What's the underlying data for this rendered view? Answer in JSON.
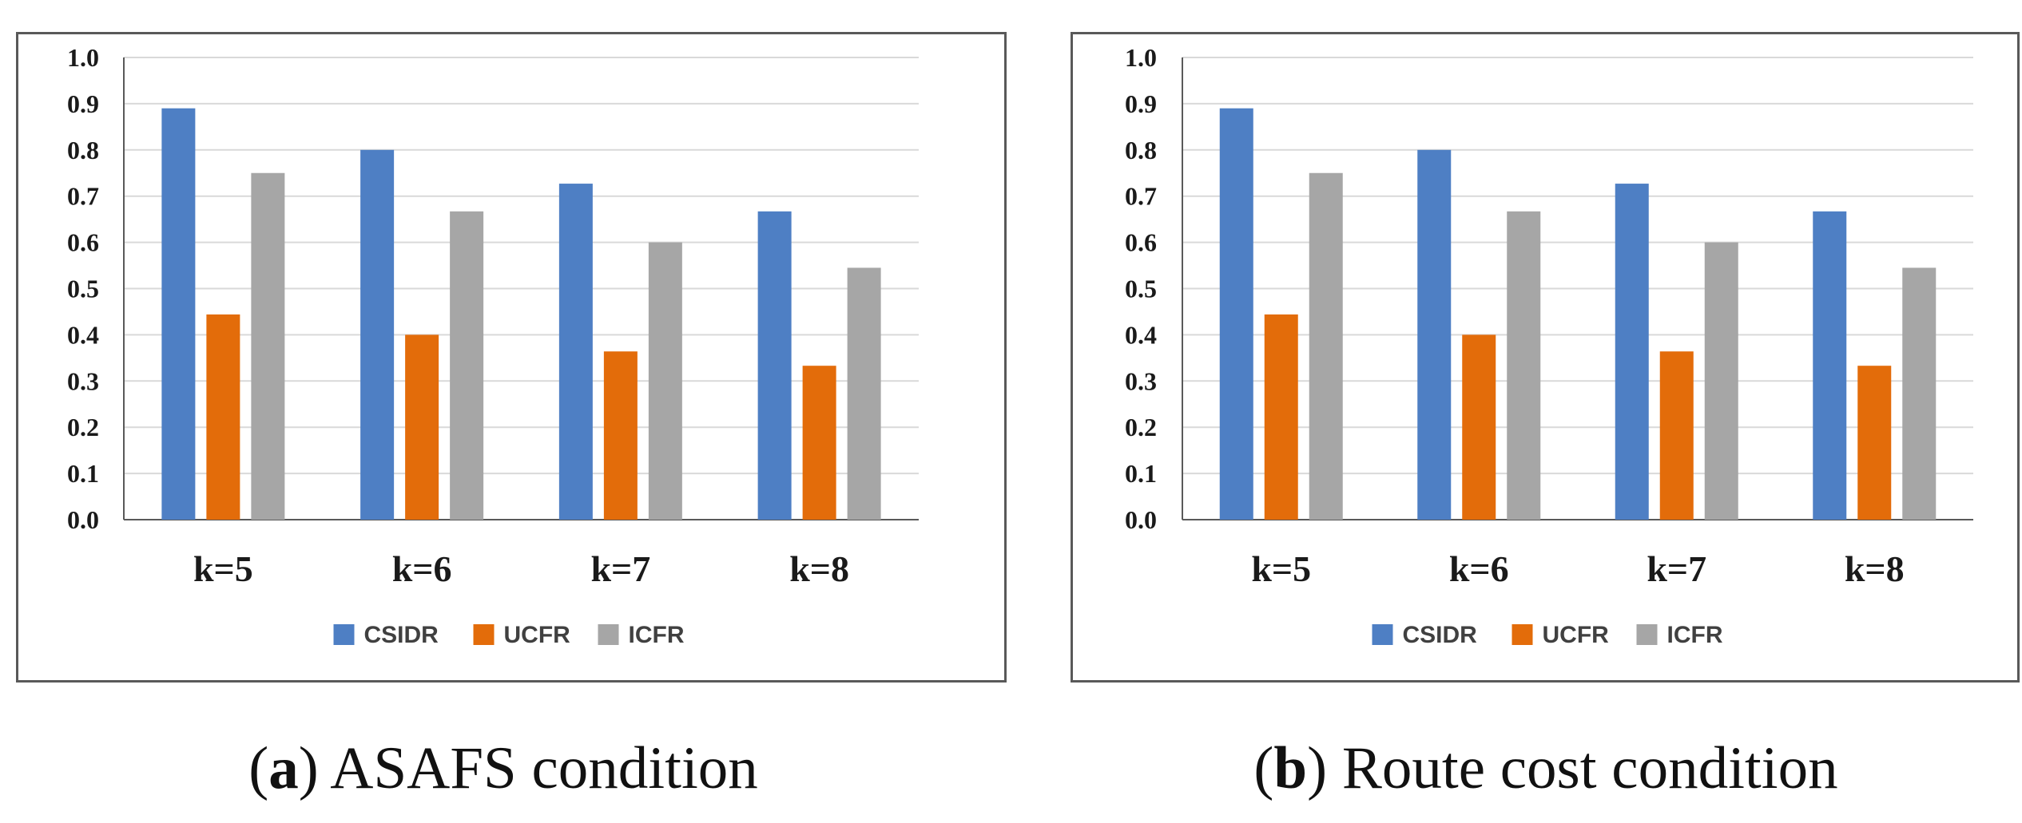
{
  "colors": {
    "CSIDR": "#4e7fc4",
    "UCFR": "#e36c0a",
    "ICFR": "#a6a6a6",
    "grid": "#d9d9d9",
    "axis": "#595959"
  },
  "chart_data": [
    {
      "type": "bar",
      "panel": "a",
      "categories": [
        "k=5",
        "k=6",
        "k=7",
        "k=8"
      ],
      "series": [
        {
          "name": "CSIDR",
          "values": [
            0.89,
            0.8,
            0.727,
            0.667
          ]
        },
        {
          "name": "UCFR",
          "values": [
            0.444,
            0.4,
            0.364,
            0.333
          ]
        },
        {
          "name": "ICFR",
          "values": [
            0.75,
            0.667,
            0.6,
            0.545
          ]
        }
      ],
      "yticks": [
        "0.0",
        "0.1",
        "0.2",
        "0.3",
        "0.4",
        "0.5",
        "0.6",
        "0.7",
        "0.8",
        "0.9",
        "1.0"
      ],
      "ylim": [
        0,
        1.0
      ],
      "grid": true,
      "legend": "bottom-center",
      "title": "",
      "xlabel": "",
      "ylabel": "",
      "caption": {
        "letter": "a",
        "text": "ASAFS condition"
      }
    },
    {
      "type": "bar",
      "panel": "b",
      "categories": [
        "k=5",
        "k=6",
        "k=7",
        "k=8"
      ],
      "series": [
        {
          "name": "CSIDR",
          "values": [
            0.89,
            0.8,
            0.727,
            0.667
          ]
        },
        {
          "name": "UCFR",
          "values": [
            0.444,
            0.4,
            0.364,
            0.333
          ]
        },
        {
          "name": "ICFR",
          "values": [
            0.75,
            0.667,
            0.6,
            0.545
          ]
        }
      ],
      "yticks": [
        "0.0",
        "0.1",
        "0.2",
        "0.3",
        "0.4",
        "0.5",
        "0.6",
        "0.7",
        "0.8",
        "0.9",
        "1.0"
      ],
      "ylim": [
        0,
        1.0
      ],
      "grid": true,
      "legend": "bottom-center",
      "title": "",
      "xlabel": "",
      "ylabel": "",
      "caption": {
        "letter": "b",
        "text": "Route cost condition"
      }
    }
  ]
}
